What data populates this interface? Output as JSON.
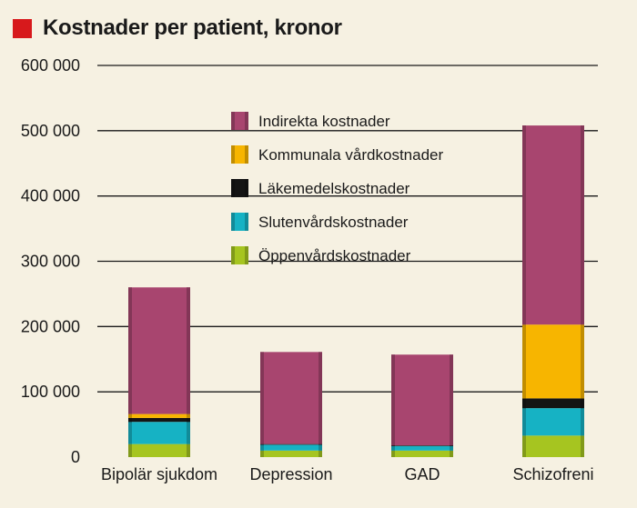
{
  "chart_data": {
    "type": "bar",
    "stacked": true,
    "title": "Kostnader per patient, kronor",
    "title_marker_color": "#d7191c",
    "categories": [
      "Bipolär sjukdom",
      "Depression",
      "GAD",
      "Schizofreni"
    ],
    "y_ticks": [
      "0",
      "100 000",
      "200 000",
      "300 000",
      "400 000",
      "500 000",
      "600 000"
    ],
    "ylim": [
      0,
      600000
    ],
    "grid": true,
    "legend_position": "top-center",
    "series": [
      {
        "name": "Öppenvårdskostnader",
        "color": "#a6c520",
        "values": [
          20000,
          10000,
          10000,
          33000
        ]
      },
      {
        "name": "Slutenvårdskostnader",
        "color": "#16b2c4",
        "values": [
          34000,
          9000,
          7000,
          42000
        ]
      },
      {
        "name": "Läkemedelskostnader",
        "color": "#141414",
        "values": [
          6000,
          1000,
          1000,
          15000
        ]
      },
      {
        "name": "Kommunala vårdkostnader",
        "color": "#f7b500",
        "values": [
          6000,
          0,
          0,
          113000
        ]
      },
      {
        "name": "Indirekta kostnader",
        "color": "#a8456f",
        "values": [
          194000,
          141000,
          139000,
          305000
        ]
      }
    ]
  }
}
